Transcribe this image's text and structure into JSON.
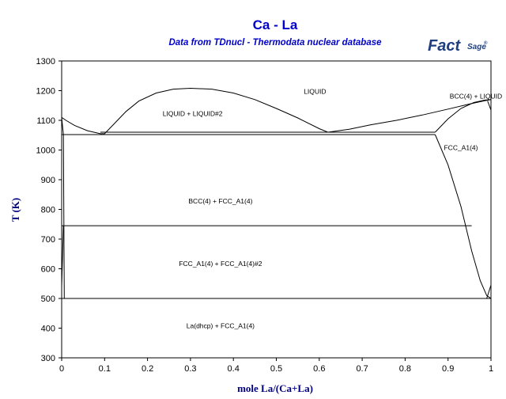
{
  "colors": {
    "title": "#0000cc",
    "axis_label": "#000080",
    "logo": "#1f3f7f",
    "line": "#000000"
  },
  "logo": {
    "main": "Fact",
    "sub": "Sage",
    "mark": "®"
  },
  "chart_data": {
    "type": "line",
    "title": "Ca - La",
    "subtitle": "Data from TDnucl - Thermodata nuclear database",
    "xlabel": "mole La/(Ca+La)",
    "ylabel": "T (K)",
    "xlim": [
      0,
      1
    ],
    "ylim": [
      300,
      1300
    ],
    "xticks": [
      "0",
      "0.1",
      "0.2",
      "0.3",
      "0.4",
      "0.5",
      "0.6",
      "0.7",
      "0.8",
      "0.9",
      "1"
    ],
    "yticks": [
      "300",
      "400",
      "500",
      "600",
      "700",
      "800",
      "900",
      "1000",
      "1100",
      "1200",
      "1300"
    ],
    "grid": false,
    "phase_labels": [
      {
        "text": "LIQUID",
        "x": 0.59,
        "y": 1190
      },
      {
        "text": "LIQUID + LIQUID#2",
        "x": 0.305,
        "y": 1115
      },
      {
        "text": "BCC(4) + LIQUID",
        "x": 0.965,
        "y": 1174
      },
      {
        "text": "FCC_A1(4)",
        "x": 0.93,
        "y": 1000
      },
      {
        "text": "BCC(4) + FCC_A1(4)",
        "x": 0.37,
        "y": 820
      },
      {
        "text": "FCC_A1(4) + FCC_A1(4)#2",
        "x": 0.37,
        "y": 610
      },
      {
        "text": "La(dhcp) + FCC_A1(4)",
        "x": 0.37,
        "y": 400
      }
    ],
    "series": [
      {
        "type": "miscibility_gap",
        "x": [
          0.0,
          0.01,
          0.03,
          0.06,
          0.09,
          0.1,
          0.12,
          0.15,
          0.18,
          0.22,
          0.26,
          0.3,
          0.35,
          0.4,
          0.45,
          0.5,
          0.55,
          0.6,
          0.62
        ],
        "y": [
          1110,
          1100,
          1083,
          1065,
          1055,
          1055,
          1085,
          1130,
          1165,
          1192,
          1205,
          1208,
          1205,
          1192,
          1170,
          1140,
          1108,
          1072,
          1060
        ]
      },
      {
        "type": "liquidus_right",
        "x": [
          0.62,
          0.67,
          0.72,
          0.78,
          0.84,
          0.9,
          0.95,
          0.985,
          1.0
        ],
        "y": [
          1060,
          1070,
          1085,
          1100,
          1118,
          1138,
          1155,
          1166,
          1170
        ]
      },
      {
        "type": "bcc_liquid_boundary",
        "x": [
          0.87,
          0.9,
          0.93,
          0.96,
          0.985,
          1.0
        ],
        "y": [
          1060,
          1105,
          1140,
          1160,
          1168,
          1170
        ]
      },
      {
        "type": "fcc_solvus",
        "x": [
          0.87,
          0.9,
          0.93,
          0.955,
          0.975,
          0.99,
          1.0
        ],
        "y": [
          1052,
          950,
          810,
          660,
          560,
          510,
          500
        ]
      },
      {
        "type": "la_side_boundary",
        "x": [
          0.992,
          1.0
        ],
        "y": [
          1165,
          1135
        ]
      },
      {
        "type": "ca_side_boundary",
        "x": [
          0.0,
          0.004,
          0.006
        ],
        "y": [
          1110,
          1052,
          500
        ]
      },
      {
        "type": "ca_side_low",
        "x": [
          0.0,
          0.004
        ],
        "y": [
          540,
          745
        ]
      },
      {
        "type": "la_side_low",
        "x": [
          0.99,
          1.0
        ],
        "y": [
          500,
          545
        ]
      },
      {
        "type": "monotectic_1060",
        "x": [
          0.09,
          0.87
        ],
        "y": [
          1060,
          1060
        ]
      },
      {
        "type": "eutectoid_1052",
        "x": [
          0.0,
          0.87
        ],
        "y": [
          1052,
          1052
        ]
      },
      {
        "type": "isotherm_745",
        "x": [
          0.0,
          0.955
        ],
        "y": [
          745,
          745
        ]
      },
      {
        "type": "isotherm_500",
        "x": [
          0.0,
          1.0
        ],
        "y": [
          500,
          500
        ]
      }
    ]
  }
}
